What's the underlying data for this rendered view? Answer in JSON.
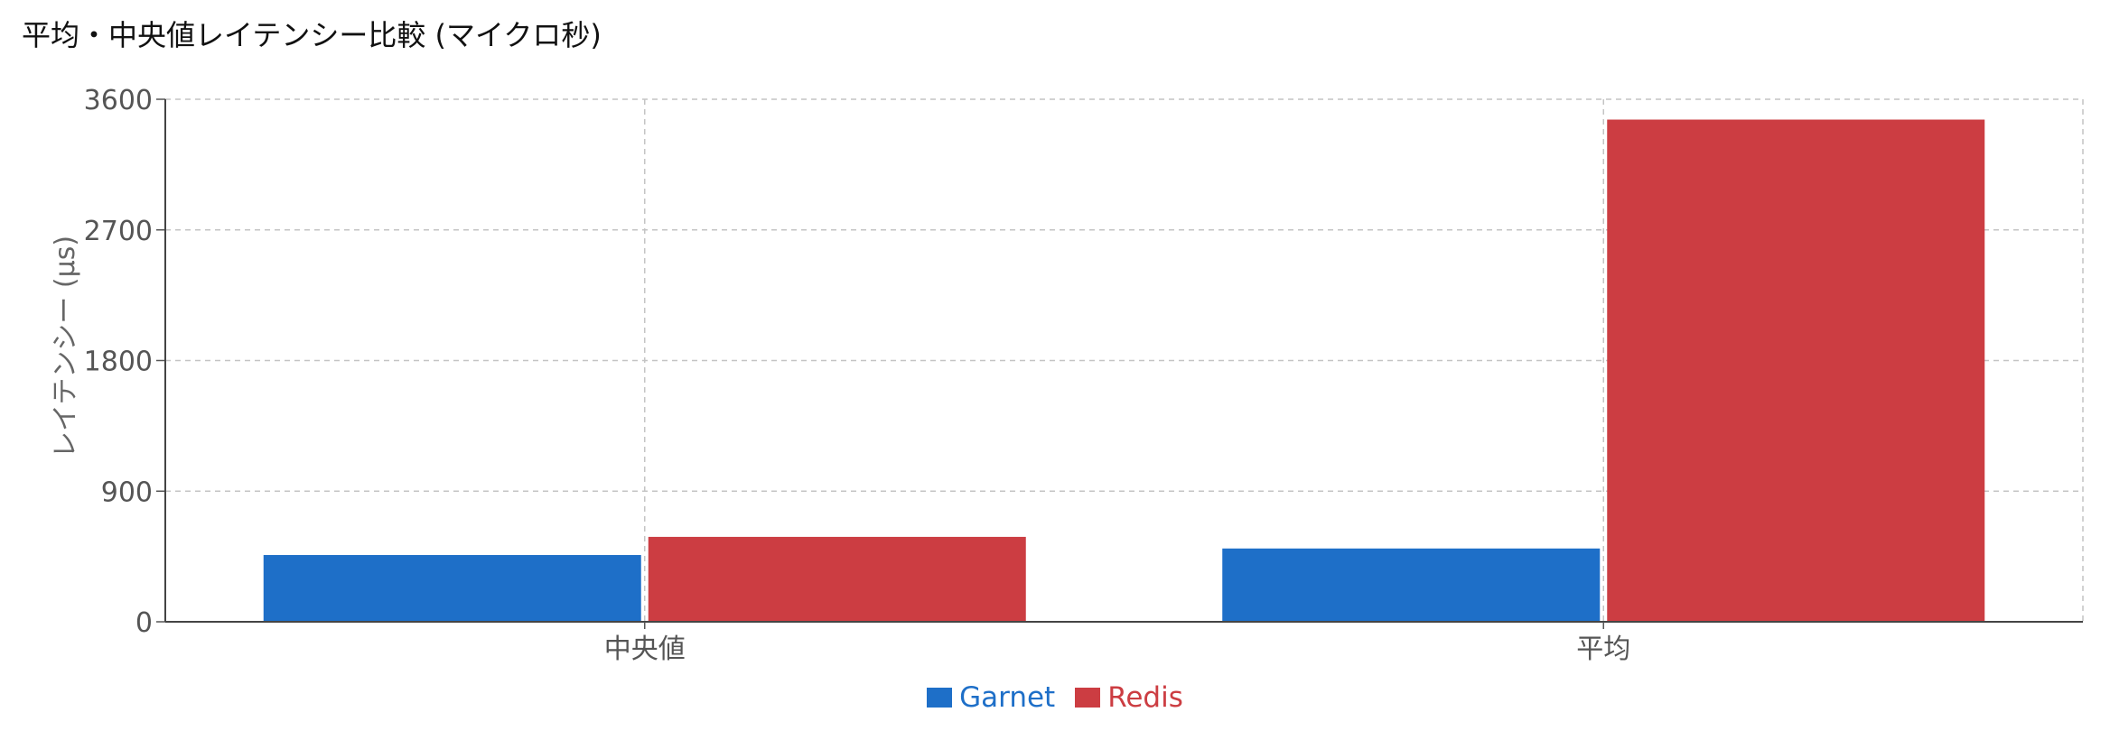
{
  "chart_data": {
    "type": "bar",
    "title": "平均・中央値レイテンシー比較 (マイクロ秒)",
    "xlabel": "",
    "ylabel": "レイテンシー (µs)",
    "ylim": [
      0,
      3600
    ],
    "yticks": [
      0,
      900,
      1800,
      2700,
      3600
    ],
    "grid": true,
    "legend_position": "bottom-center",
    "categories": [
      "中央値",
      "平均"
    ],
    "series": [
      {
        "name": "Garnet",
        "color": "#1e6fc8",
        "values": [
          460,
          505
        ]
      },
      {
        "name": "Redis",
        "color": "#cc3d42",
        "values": [
          585,
          3460
        ]
      }
    ]
  }
}
